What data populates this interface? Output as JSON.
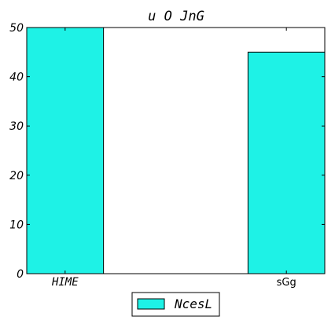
{
  "chart_data": {
    "type": "bar",
    "title": "u O JnG",
    "categories": [
      "HIME",
      "sGg"
    ],
    "category_styles": [
      "italic",
      "plain"
    ],
    "series": [
      {
        "name": "NcesL",
        "values": [
          50,
          45
        ],
        "color": "#1ef2e6"
      }
    ],
    "ylim": [
      0,
      50
    ],
    "yticks": [
      0,
      10,
      20,
      30,
      40,
      50
    ],
    "xlabel": "",
    "ylabel": "",
    "grid": false,
    "legend_position": "bottom-center"
  }
}
